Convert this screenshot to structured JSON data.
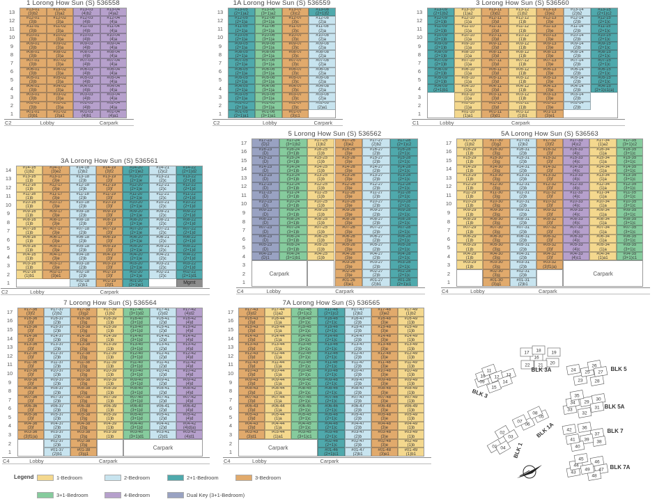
{
  "category_colors": {
    "1": "#F4D88E",
    "2": "#C8E4EF",
    "2+1": "#4FA9AC",
    "3": "#E1AA6C",
    "3+1": "#86CB9D",
    "4": "#B6A0CC",
    "D": "#99A2C2",
    "mgmt": "#8C8C8C"
  },
  "blocks": [
    {
      "title": "1 Lorong How Sun (S) 536558",
      "floors": [
        1,
        13
      ],
      "base": {
        "code": "C2",
        "lobby": "Lobby",
        "carpark": "Carpark"
      },
      "columns": [
        {
          "stack": "01",
          "cat": "3",
          "from": 1,
          "top": "(3)b2",
          "mid": "(3)b",
          "low": "(3)b1"
        },
        {
          "stack": "02",
          "cat": "3",
          "from": 1,
          "top": "(3)a2",
          "mid": "(3)a",
          "low": "(3)a1"
        },
        {
          "stack": "03",
          "cat": "4",
          "from": 1,
          "top": "(4)b2",
          "mid": "(4)b",
          "low": "(4)b1"
        },
        {
          "stack": "04",
          "cat": "4",
          "from": 1,
          "top": "(4)a2",
          "mid": "(4)a",
          "low": "(4)a1"
        }
      ],
      "voids": []
    },
    {
      "title": "1A Lorong How Sun (S) 536559",
      "floors": [
        1,
        13
      ],
      "base": {
        "code": "C2",
        "lobby": "Lobby",
        "carpark": "Carpark"
      },
      "columns": [
        {
          "stack": "05",
          "cat": "2+1",
          "from": 1,
          "top": "(2+1)a2",
          "mid": "(2+1)a",
          "low": "(2+1)a1"
        },
        {
          "stack": "06",
          "cat": "3+1",
          "from": 1,
          "top": "(3+1)a2",
          "mid": "(3+1)a",
          "low": "(3+1)a1"
        },
        {
          "stack": "07",
          "cat": "3",
          "from": 1,
          "top": "(3)c2",
          "mid": "(3)c",
          "low": "(3)c1"
        },
        {
          "stack": "08",
          "cat": "2",
          "from": 2,
          "top": "(2+1)f2",
          "topCat": "2+1",
          "mid": "(2)a",
          "low": "(2)a1"
        }
      ],
      "voids": []
    },
    {
      "title": "3 Lorong How Sun (S) 536560",
      "floors": [
        1,
        13
      ],
      "base": {
        "code": "C1",
        "lobby": "Lobby",
        "carpark": "Carpark"
      },
      "columns": [
        {
          "stack": "09",
          "cat": "2+1",
          "from": 4,
          "top": "(2+1)b2",
          "mid": "(2+1)b",
          "low": "(2+1)b1"
        },
        {
          "stack": "10",
          "cat": "1",
          "from": 1,
          "top": "(1)a2",
          "mid": "(1)a",
          "low": "(1)a1"
        },
        {
          "stack": "11",
          "cat": "3",
          "from": 1,
          "top": "(3)d2",
          "mid": "(3)d",
          "low": "(3)d1"
        },
        {
          "stack": "12",
          "cat": "1",
          "from": 1,
          "top": "(1)b2",
          "mid": "(1)b",
          "low": "(1)b1"
        },
        {
          "stack": "13",
          "cat": "3",
          "from": 1,
          "top": "(3)e2",
          "mid": "(3)e",
          "low": "(3)e1"
        },
        {
          "stack": "14",
          "cat": "2",
          "from": 2,
          "top": "(2)b2",
          "mid": "(2)b",
          "low": "(2)b"
        },
        {
          "stack": "15",
          "cat": "2+1",
          "from": 4,
          "top": "(2+1)c2",
          "mid": "(2+1)c",
          "low": "(2+1)c1(a)"
        }
      ],
      "voids": []
    },
    {
      "title": "3A Lorong How Sun (S) 536561",
      "floors": [
        1,
        14
      ],
      "base": {
        "code": "C2",
        "lobby": "Lobby",
        "carpark": "Carpark"
      },
      "columns": [
        {
          "stack": "16",
          "cat": "1",
          "from": 2,
          "top": "(1)b2",
          "mid": "(1)b",
          "low": "(1)b1"
        },
        {
          "stack": "17",
          "cat": "3",
          "from": 2,
          "top": "(3)e2",
          "mid": "(3)e",
          "low": "(3)e1"
        },
        {
          "stack": "18",
          "cat": "2",
          "from": 1,
          "top": "(2)b2",
          "mid": "(2)b",
          "low": "(2)b1"
        },
        {
          "stack": "19",
          "cat": "3",
          "from": 1,
          "top": "(3)f2",
          "mid": "(3)f",
          "low": "(3)f1"
        },
        {
          "stack": "20",
          "cat": "2+1",
          "from": 1,
          "top": "(2+1)e2",
          "mid": "(2+1)e",
          "low": "(2+1)e1"
        },
        {
          "stack": "21",
          "cat": "2",
          "from": 2,
          "top": "(2)c2",
          "mid": "(2)c",
          "low": "(2)c"
        },
        {
          "stack": "22",
          "cat": "2+1",
          "from": 2,
          "top": "(2+1)d2",
          "mid": "(2+1)d",
          "low": "(2+1)d1",
          "extra": {
            "floor": 1,
            "label": "Mgmt",
            "cat": "mgmt"
          }
        }
      ],
      "voids": []
    },
    {
      "title": "5 Lorong How Sun (S) 536562",
      "floors": [
        1,
        17
      ],
      "base": {
        "code": "C4",
        "lobby": "Lobby",
        "carpark": "Carpark"
      },
      "columns": [
        {
          "stack": "23",
          "cat": "D",
          "from": 4,
          "top": "(D)2",
          "mid": "(D)",
          "low": "(D)1"
        },
        {
          "stack": "24",
          "cat": "3+1",
          "from": 4,
          "top": "(3+1)b2",
          "mid": "(3+1)b",
          "low": "(3+1)b1"
        },
        {
          "stack": "25",
          "cat": "1",
          "from": 4,
          "top": "(1)b2",
          "mid": "(1)b",
          "low": "(1)b"
        },
        {
          "stack": "26",
          "cat": "3",
          "from": 1,
          "top": "(3)e2",
          "mid": "(3)e",
          "low": "(3)e1"
        },
        {
          "stack": "27",
          "cat": "2",
          "from": 1,
          "top": "(2)b2",
          "mid": "(2)b",
          "low": "(2)b1"
        },
        {
          "stack": "28",
          "cat": "2+1",
          "from": 1,
          "top": "(2+1)c2",
          "mid": "(2+1)c",
          "low": "(2+1)c1"
        }
      ],
      "voids": [
        {
          "label": "Carpark",
          "col_from": 0,
          "col_to": 1,
          "floor_to": 3
        },
        {
          "label": "",
          "col_from": 2,
          "col_to": 2,
          "floor_to": 3
        }
      ]
    },
    {
      "title": "5A Lorong How Sun (S) 536563",
      "floors": [
        1,
        17
      ],
      "base": {
        "code": "C4",
        "lobby": "Lobby",
        "carpark": "Carpark"
      },
      "columns": [
        {
          "stack": "29",
          "cat": "1",
          "from": 3,
          "top": "(1)b2",
          "mid": "(1)b",
          "low": "(1)b"
        },
        {
          "stack": "30",
          "cat": "3",
          "from": 1,
          "top": "(3)g2",
          "mid": "(3)g",
          "low": "(3)g1"
        },
        {
          "stack": "31",
          "cat": "2",
          "from": 1,
          "top": "(2)b2",
          "mid": "(2)b",
          "low": "(2)b1"
        },
        {
          "stack": "32",
          "cat": "3",
          "from": 3,
          "top": "(3)f2",
          "mid": "(3)f",
          "low": "(3)f1(a)"
        },
        {
          "stack": "33",
          "cat": "4",
          "from": 4,
          "top": "(4)c2",
          "mid": "(4)c",
          "low": "(4)c1"
        },
        {
          "stack": "34",
          "cat": "1",
          "from": 4,
          "top": "(1)a2",
          "mid": "(1)a",
          "low": "(1)a1"
        },
        {
          "stack": "35",
          "cat": "3+1",
          "from": 4,
          "top": "(3+1)c2",
          "mid": "(3+1)c",
          "low": "(3+1)c1"
        }
      ],
      "voids": [
        {
          "label": "",
          "col_from": 0,
          "col_to": 0,
          "floor_to": 2
        },
        {
          "label": "",
          "col_from": 3,
          "col_to": 3,
          "floor_to": 2
        },
        {
          "label": "Carpark",
          "col_from": 4,
          "col_to": 6,
          "floor_to": 3
        }
      ]
    },
    {
      "title": "7 Lorong How Sun (S) 536564",
      "floors": [
        1,
        17
      ],
      "base": {
        "code": "C4",
        "lobby": "Lobby",
        "carpark": "Carpark"
      },
      "columns": [
        {
          "stack": "36",
          "cat": "3",
          "from": 3,
          "top": "(3)f2",
          "mid": "(3)f",
          "low": "(3)f1(a)"
        },
        {
          "stack": "37",
          "cat": "2",
          "from": 1,
          "top": "(2)b2",
          "mid": "(2)b",
          "low": "(2)b1"
        },
        {
          "stack": "38",
          "cat": "3",
          "from": 1,
          "top": "(3)g2",
          "mid": "(3)g",
          "low": "(3)g1"
        },
        {
          "stack": "39",
          "cat": "1",
          "from": 3,
          "top": "(1)b2",
          "mid": "(1)b",
          "low": "(1)b"
        },
        {
          "stack": "40",
          "cat": "3+1",
          "from": 3,
          "top": "(3+1)d2",
          "mid": "(3+1)d",
          "low": "(3+1)d1"
        },
        {
          "stack": "41",
          "cat": "2",
          "from": 3,
          "top": "(2)d2",
          "mid": "(2)d",
          "low": "(2)d1"
        },
        {
          "stack": "42",
          "cat": "4",
          "from": 3,
          "top": "(4)d2",
          "mid": "(4)d",
          "low": "(4)d1",
          "overrides": {
            "4": "(4)d(a)"
          }
        }
      ],
      "voids": [
        {
          "label": "",
          "col_from": 0,
          "col_to": 0,
          "floor_to": 2
        },
        {
          "label": "",
          "col_from": 3,
          "col_to": 3,
          "floor_to": 2
        },
        {
          "label": "Carpark",
          "col_from": 4,
          "col_to": 6,
          "floor_to": 2
        }
      ]
    },
    {
      "title": "7A Lorong How Sun (S) 536565",
      "floors": [
        1,
        17
      ],
      "base": {
        "code": "C4",
        "lobby": "Lobby",
        "carpark": "Carpark"
      },
      "columns": [
        {
          "stack": "43",
          "cat": "3",
          "from": 3,
          "top": "(3)d2",
          "mid": "(3)d",
          "low": "(3)d1"
        },
        {
          "stack": "44",
          "cat": "1",
          "from": 3,
          "top": "(1)a2",
          "mid": "(1)a",
          "low": "(1)a1"
        },
        {
          "stack": "45",
          "cat": "3+1",
          "from": 3,
          "top": "(3+1)c2",
          "mid": "(3+1)c",
          "low": "(3+1)c1"
        },
        {
          "stack": "46",
          "cat": "2+1",
          "from": 1,
          "top": "(2+1)c2",
          "mid": "(2+1)c",
          "low": "(2+1)c1"
        },
        {
          "stack": "47",
          "cat": "2",
          "from": 1,
          "top": "(2)b2",
          "mid": "(2)b",
          "low": "(2)b1"
        },
        {
          "stack": "48",
          "cat": "3",
          "from": 1,
          "top": "(3)e2",
          "mid": "(3)e",
          "low": "(3)e1"
        },
        {
          "stack": "49",
          "cat": "1",
          "from": 1,
          "top": "(1)b2",
          "mid": "(1)b",
          "low": "(1)b1"
        }
      ],
      "voids": [
        {
          "label": "Carpark",
          "col_from": 0,
          "col_to": 2,
          "floor_to": 2
        }
      ]
    }
  ],
  "legend": {
    "title": "Legend",
    "items": [
      {
        "label": "1-Bedroom",
        "cat": "1"
      },
      {
        "label": "2-Bedroom",
        "cat": "2"
      },
      {
        "label": "2+1-Bedroom",
        "cat": "2+1"
      },
      {
        "label": "3-Bedroom",
        "cat": "3"
      },
      {
        "label": "3+1-Bedroom",
        "cat": "3+1"
      },
      {
        "label": "4-Bedroom",
        "cat": "4"
      },
      {
        "label": "Dual Key (3+1-Bedroom)",
        "cat": "D"
      }
    ]
  },
  "site_plan": {
    "blocks": [
      {
        "name": "BLK 1",
        "units": [
          "01",
          "02",
          "03",
          "04"
        ]
      },
      {
        "name": "BLK 1A",
        "units": [
          "05",
          "06",
          "07",
          "08"
        ]
      },
      {
        "name": "BLK 3",
        "units": [
          "09",
          "10",
          "11",
          "12",
          "13",
          "14",
          "15"
        ]
      },
      {
        "name": "BLK 3A",
        "units": [
          "16",
          "17",
          "18",
          "19",
          "20",
          "21",
          "22"
        ]
      },
      {
        "name": "BLK 5",
        "units": [
          "23",
          "24",
          "25",
          "26",
          "27",
          "28"
        ]
      },
      {
        "name": "BLK 5A",
        "units": [
          "29",
          "30",
          "31",
          "32",
          "33",
          "34",
          "35"
        ]
      },
      {
        "name": "BLK 7",
        "units": [
          "36",
          "37",
          "38",
          "39",
          "40",
          "41",
          "42"
        ]
      },
      {
        "name": "BLK 7A",
        "units": [
          "43",
          "44",
          "45",
          "46",
          "47",
          "48",
          "49"
        ]
      }
    ],
    "north_arrow": "compass-icon"
  }
}
